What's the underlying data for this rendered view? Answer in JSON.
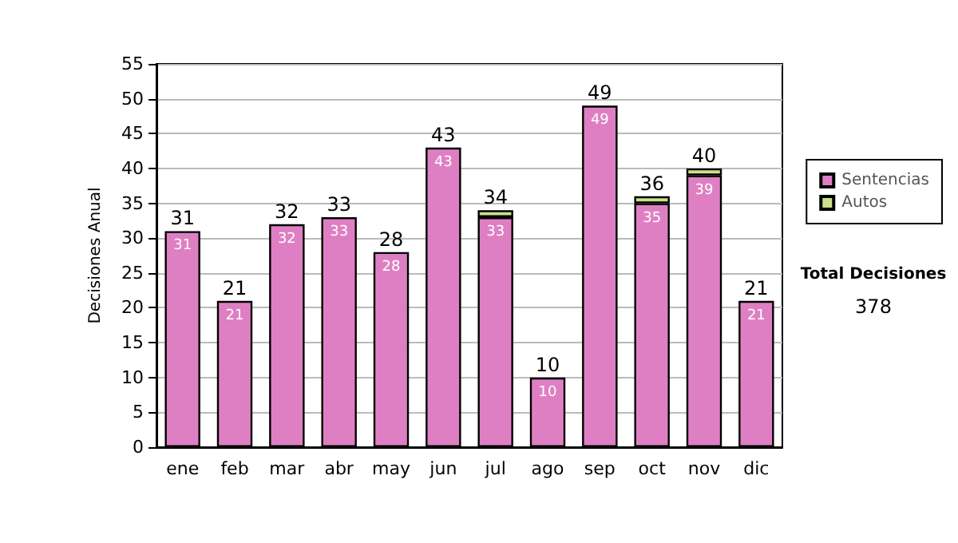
{
  "chart_data": {
    "type": "bar",
    "stacked": true,
    "ylabel": "Decisiones Anual",
    "categories": [
      "ene",
      "feb",
      "mar",
      "abr",
      "may",
      "jun",
      "jul",
      "ago",
      "sep",
      "oct",
      "nov",
      "dic"
    ],
    "series": [
      {
        "name": "Sentencias",
        "color": "#df7fc3",
        "values": [
          31,
          21,
          32,
          33,
          28,
          43,
          33,
          10,
          49,
          35,
          39,
          21
        ],
        "value_labels": [
          "31",
          "21",
          "32",
          "33",
          "28",
          "43",
          "33",
          "10",
          "49",
          "35",
          "39",
          "21"
        ]
      },
      {
        "name": "Autos",
        "color": "#cce08a",
        "values": [
          null,
          null,
          null,
          null,
          null,
          null,
          1,
          null,
          null,
          1,
          1,
          null
        ]
      }
    ],
    "totals": [
      "31",
      "21",
      "32",
      "33",
      "28",
      "43",
      "34",
      "10",
      "49",
      "36",
      "40",
      "21"
    ],
    "ylim": [
      0,
      55
    ],
    "yticks": [
      0,
      5,
      10,
      15,
      20,
      25,
      30,
      35,
      40,
      45,
      50,
      55
    ],
    "grid": "y",
    "legend": "right",
    "annotations": [
      "Total Decisiones",
      "378"
    ]
  }
}
